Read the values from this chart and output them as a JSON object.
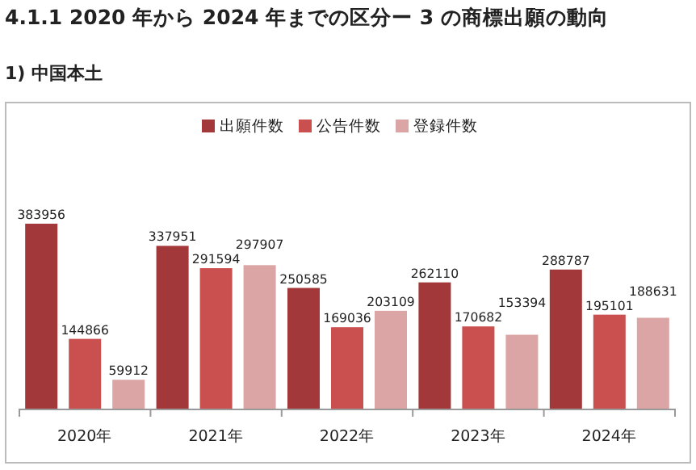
{
  "chart_data": {
    "type": "bar",
    "title": "4.1.1 2020 年から 2024 年までの区分ー 3 の商標出願の動向",
    "subtitle": "1) 中国本土",
    "categories": [
      "2020年",
      "2021年",
      "2022年",
      "2023年",
      "2024年"
    ],
    "relative": false,
    "data_labels": true,
    "legend": "top",
    "series": [
      {
        "name": "出願件数",
        "color": "#a3383a",
        "values": [
          383956,
          337951,
          250585,
          262110,
          288787
        ]
      },
      {
        "name": "公告件数",
        "color": "#c9504f",
        "values": [
          144866,
          291594,
          169036,
          170682,
          195101
        ]
      },
      {
        "name": "登録件数",
        "color": "#dca5a5",
        "values": [
          59912,
          297907,
          203109,
          153394,
          188631
        ]
      }
    ]
  }
}
